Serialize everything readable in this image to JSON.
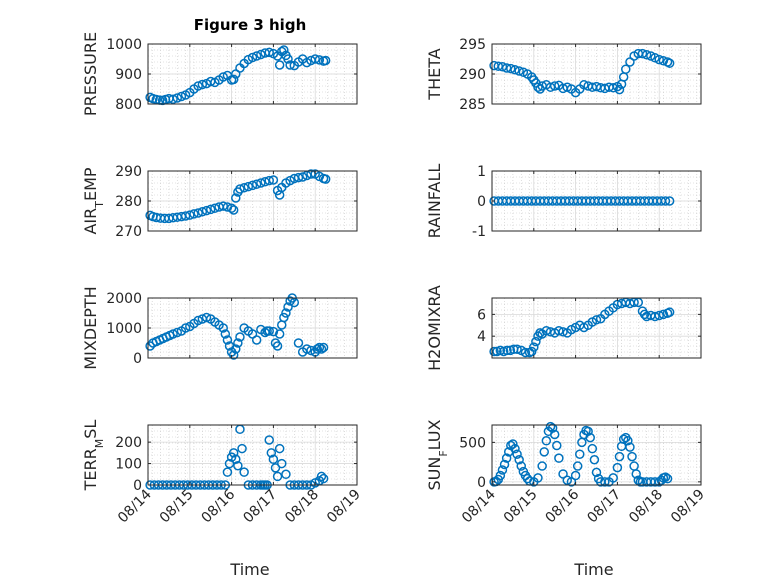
{
  "figure": {
    "title": "Figure 3 high",
    "marker_color": "#0072bd",
    "x_axis_label": "Time"
  },
  "chart_data": [
    {
      "type": "scatter",
      "ylabel": "PRESSURE",
      "title": "Figure 3 high",
      "xlim": [
        0,
        5
      ],
      "ylim": [
        800,
        1000
      ],
      "yticks": [
        800,
        900,
        1000
      ],
      "xticklabels": [
        "08/14",
        "08/15",
        "08/16",
        "08/17",
        "08/18",
        "08/19"
      ],
      "grid": true,
      "minor_grid": true,
      "series": [
        {
          "x": [
            0.05,
            0.12,
            0.2,
            0.28,
            0.35,
            0.42,
            0.5,
            0.6,
            0.7,
            0.8,
            0.9,
            1.0,
            1.1,
            1.2,
            1.3,
            1.4,
            1.5,
            1.6,
            1.7,
            1.8,
            1.9,
            2.0,
            2.05,
            2.1,
            2.2,
            2.3,
            2.4,
            2.5,
            2.6,
            2.7,
            2.8,
            2.9,
            3.0,
            3.1,
            3.15,
            3.2,
            3.25,
            3.3,
            3.35,
            3.4,
            3.5,
            3.6,
            3.7,
            3.8,
            3.9,
            4.0,
            4.1,
            4.2,
            4.25
          ],
          "y": [
            822,
            818,
            815,
            813,
            812,
            815,
            818,
            816,
            820,
            825,
            830,
            838,
            850,
            860,
            865,
            868,
            875,
            872,
            880,
            890,
            895,
            880,
            882,
            900,
            920,
            935,
            948,
            955,
            960,
            965,
            970,
            972,
            968,
            960,
            930,
            975,
            980,
            962,
            950,
            930,
            928,
            940,
            950,
            938,
            945,
            950,
            947,
            943,
            945
          ]
        }
      ]
    },
    {
      "type": "scatter",
      "ylabel": "THETA",
      "xlim": [
        0,
        5
      ],
      "ylim": [
        285,
        295
      ],
      "yticks": [
        285,
        290,
        295
      ],
      "xticklabels": [
        "08/14",
        "08/15",
        "08/16",
        "08/17",
        "08/18",
        "08/19"
      ],
      "grid": true,
      "minor_grid": true,
      "series": [
        {
          "x": [
            0.05,
            0.15,
            0.25,
            0.35,
            0.45,
            0.55,
            0.65,
            0.75,
            0.85,
            0.95,
            1.0,
            1.05,
            1.1,
            1.15,
            1.2,
            1.3,
            1.4,
            1.5,
            1.6,
            1.7,
            1.8,
            1.9,
            2.0,
            2.1,
            2.2,
            2.3,
            2.4,
            2.5,
            2.6,
            2.7,
            2.8,
            2.9,
            3.0,
            3.05,
            3.1,
            3.15,
            3.2,
            3.3,
            3.4,
            3.5,
            3.6,
            3.7,
            3.8,
            3.9,
            4.0,
            4.1,
            4.2,
            4.25
          ],
          "y": [
            291.4,
            291.3,
            291.2,
            291.0,
            290.9,
            290.7,
            290.5,
            290.3,
            290.0,
            289.5,
            289.0,
            288.5,
            287.8,
            287.5,
            288.0,
            288.2,
            287.8,
            288.0,
            288.1,
            287.6,
            287.8,
            287.5,
            286.9,
            287.5,
            288.2,
            288.0,
            287.8,
            287.9,
            287.7,
            287.6,
            287.8,
            287.7,
            287.9,
            287.4,
            288.3,
            289.5,
            290.8,
            292.0,
            293.0,
            293.4,
            293.4,
            293.2,
            293.0,
            292.7,
            292.4,
            292.2,
            292.0,
            291.8
          ]
        }
      ]
    },
    {
      "type": "scatter",
      "ylabel_main": "AIR",
      "ylabel_sub": "T",
      "ylabel_rest": "EMP",
      "xlim": [
        0,
        5
      ],
      "ylim": [
        270,
        290
      ],
      "yticks": [
        270,
        280,
        290
      ],
      "xticklabels": [
        "08/14",
        "08/15",
        "08/16",
        "08/17",
        "08/18",
        "08/19"
      ],
      "grid": true,
      "minor_grid": true,
      "series": [
        {
          "x": [
            0.05,
            0.12,
            0.2,
            0.3,
            0.4,
            0.5,
            0.6,
            0.7,
            0.8,
            0.9,
            1.0,
            1.1,
            1.2,
            1.3,
            1.4,
            1.5,
            1.6,
            1.7,
            1.8,
            1.9,
            2.0,
            2.05,
            2.1,
            2.15,
            2.2,
            2.3,
            2.4,
            2.5,
            2.6,
            2.7,
            2.8,
            2.9,
            3.0,
            3.1,
            3.15,
            3.2,
            3.3,
            3.4,
            3.5,
            3.6,
            3.7,
            3.8,
            3.9,
            4.0,
            4.1,
            4.2,
            4.25
          ],
          "y": [
            275.2,
            274.8,
            274.5,
            274.3,
            274.2,
            274.2,
            274.4,
            274.6,
            274.8,
            275.0,
            275.3,
            275.7,
            276.0,
            276.4,
            276.8,
            277.2,
            277.6,
            278.0,
            278.3,
            278.0,
            277.6,
            277.0,
            281.0,
            283.0,
            284.0,
            284.4,
            284.8,
            285.2,
            285.6,
            286.0,
            286.4,
            286.8,
            287.0,
            283.5,
            282.0,
            284.5,
            286.0,
            286.8,
            287.5,
            287.8,
            288.0,
            288.5,
            289.0,
            289.0,
            288.2,
            287.5,
            287.3
          ]
        }
      ]
    },
    {
      "type": "scatter",
      "ylabel": "RAINFALL",
      "xlim": [
        0,
        5
      ],
      "ylim": [
        -1,
        1
      ],
      "yticks": [
        -1,
        0,
        1
      ],
      "xticklabels": [
        "08/14",
        "08/15",
        "08/16",
        "08/17",
        "08/18",
        "08/19"
      ],
      "grid": true,
      "minor_grid": true,
      "series": [
        {
          "x": [
            0.05,
            0.15,
            0.25,
            0.35,
            0.45,
            0.55,
            0.65,
            0.75,
            0.85,
            0.95,
            1.05,
            1.15,
            1.25,
            1.35,
            1.45,
            1.55,
            1.65,
            1.75,
            1.85,
            1.95,
            2.05,
            2.15,
            2.25,
            2.35,
            2.45,
            2.55,
            2.65,
            2.75,
            2.85,
            2.95,
            3.05,
            3.15,
            3.25,
            3.35,
            3.45,
            3.55,
            3.65,
            3.75,
            3.85,
            3.95,
            4.05,
            4.15,
            4.25
          ],
          "y": [
            0,
            0,
            0,
            0,
            0,
            0,
            0,
            0,
            0,
            0,
            0,
            0,
            0,
            0,
            0,
            0,
            0,
            0,
            0,
            0,
            0,
            0,
            0,
            0,
            0,
            0,
            0,
            0,
            0,
            0,
            0,
            0,
            0,
            0,
            0,
            0,
            0,
            0,
            0,
            0,
            0,
            0,
            0
          ]
        }
      ]
    },
    {
      "type": "scatter",
      "ylabel": "MIXDEPTH",
      "xlim": [
        0,
        5
      ],
      "ylim": [
        0,
        2000
      ],
      "yticks": [
        0,
        1000,
        2000
      ],
      "xticklabels": [
        "08/14",
        "08/15",
        "08/16",
        "08/17",
        "08/18",
        "08/19"
      ],
      "grid": true,
      "minor_grid": true,
      "series": [
        {
          "x": [
            0.05,
            0.12,
            0.2,
            0.28,
            0.36,
            0.44,
            0.52,
            0.6,
            0.7,
            0.8,
            0.9,
            1.0,
            1.1,
            1.2,
            1.3,
            1.4,
            1.5,
            1.6,
            1.7,
            1.8,
            1.85,
            1.9,
            1.95,
            2.0,
            2.05,
            2.1,
            2.15,
            2.2,
            2.3,
            2.4,
            2.5,
            2.6,
            2.7,
            2.8,
            2.85,
            2.9,
            3.0,
            3.05,
            3.1,
            3.15,
            3.2,
            3.25,
            3.3,
            3.35,
            3.4,
            3.45,
            3.5,
            3.6,
            3.7,
            3.8,
            3.9,
            4.0,
            4.05,
            4.1,
            4.15,
            4.2
          ],
          "y": [
            400,
            500,
            550,
            600,
            650,
            700,
            750,
            800,
            850,
            900,
            1000,
            1050,
            1150,
            1250,
            1300,
            1350,
            1300,
            1200,
            1100,
            1000,
            800,
            600,
            400,
            200,
            100,
            300,
            500,
            700,
            1000,
            900,
            800,
            600,
            950,
            850,
            900,
            900,
            880,
            500,
            400,
            800,
            1100,
            1350,
            1500,
            1700,
            1900,
            2000,
            1850,
            500,
            200,
            300,
            250,
            200,
            300,
            350,
            300,
            350
          ]
        }
      ]
    },
    {
      "type": "scatter",
      "ylabel": "H2OMIXRA",
      "xlim": [
        0,
        5
      ],
      "ylim": [
        2,
        7.5
      ],
      "yticks": [
        4,
        6
      ],
      "xticklabels": [
        "08/14",
        "08/15",
        "08/16",
        "08/17",
        "08/18",
        "08/19"
      ],
      "grid": true,
      "minor_grid": true,
      "series": [
        {
          "x": [
            0.05,
            0.12,
            0.2,
            0.28,
            0.36,
            0.44,
            0.52,
            0.6,
            0.7,
            0.8,
            0.9,
            0.95,
            1.0,
            1.05,
            1.1,
            1.15,
            1.2,
            1.3,
            1.4,
            1.5,
            1.6,
            1.7,
            1.8,
            1.9,
            2.0,
            2.1,
            2.2,
            2.3,
            2.4,
            2.5,
            2.6,
            2.7,
            2.8,
            2.9,
            3.0,
            3.1,
            3.2,
            3.3,
            3.4,
            3.5,
            3.6,
            3.65,
            3.7,
            3.8,
            3.9,
            4.0,
            4.1,
            4.2,
            4.25
          ],
          "y": [
            2.6,
            2.6,
            2.7,
            2.6,
            2.7,
            2.7,
            2.8,
            2.8,
            2.7,
            2.5,
            2.5,
            2.6,
            3.0,
            3.5,
            4.0,
            4.3,
            4.2,
            4.5,
            4.4,
            4.3,
            4.5,
            4.4,
            4.3,
            4.6,
            4.8,
            5.0,
            4.8,
            5.0,
            5.3,
            5.5,
            5.6,
            6.0,
            6.3,
            6.6,
            6.9,
            7.0,
            7.1,
            7.0,
            7.1,
            7.1,
            6.3,
            6.0,
            5.8,
            5.9,
            5.8,
            5.9,
            6.0,
            6.1,
            6.2
          ]
        }
      ]
    },
    {
      "type": "scatter",
      "ylabel_main": "TERR",
      "ylabel_sub": "M",
      "ylabel_rest": "SL",
      "xlim": [
        0,
        5
      ],
      "ylim": [
        0,
        280
      ],
      "yticks": [
        0,
        100,
        200
      ],
      "xticklabels": [
        "08/14",
        "08/15",
        "08/16",
        "08/17",
        "08/18",
        "08/19"
      ],
      "grid": true,
      "minor_grid": true,
      "series": [
        {
          "x": [
            0.05,
            0.15,
            0.25,
            0.35,
            0.45,
            0.55,
            0.65,
            0.75,
            0.85,
            0.95,
            1.05,
            1.15,
            1.25,
            1.35,
            1.45,
            1.55,
            1.65,
            1.75,
            1.85,
            1.9,
            1.95,
            2.0,
            2.05,
            2.1,
            2.15,
            2.2,
            2.25,
            2.3,
            2.4,
            2.5,
            2.6,
            2.7,
            2.75,
            2.8,
            2.85,
            2.9,
            2.95,
            3.0,
            3.05,
            3.1,
            3.15,
            3.2,
            3.3,
            3.4,
            3.5,
            3.6,
            3.7,
            3.8,
            3.9,
            4.0,
            4.1,
            4.15,
            4.2
          ],
          "y": [
            0,
            0,
            0,
            0,
            0,
            0,
            0,
            0,
            0,
            0,
            0,
            0,
            0,
            0,
            0,
            0,
            0,
            0,
            0,
            60,
            100,
            130,
            150,
            120,
            90,
            260,
            170,
            60,
            0,
            0,
            0,
            0,
            0,
            0,
            0,
            210,
            150,
            120,
            80,
            40,
            170,
            100,
            50,
            0,
            0,
            0,
            0,
            0,
            0,
            10,
            20,
            40,
            30
          ]
        }
      ]
    },
    {
      "type": "scatter",
      "ylabel_main": "SUN",
      "ylabel_sub": "F",
      "ylabel_rest": "LUX",
      "xlim": [
        0,
        5
      ],
      "ylim": [
        -40,
        720
      ],
      "yticks": [
        0,
        500
      ],
      "xticklabels": [
        "08/14",
        "08/15",
        "08/16",
        "08/17",
        "08/18",
        "08/19"
      ],
      "grid": true,
      "minor_grid": true,
      "series": [
        {
          "x": [
            0.05,
            0.1,
            0.15,
            0.2,
            0.25,
            0.3,
            0.35,
            0.4,
            0.45,
            0.5,
            0.55,
            0.6,
            0.65,
            0.7,
            0.75,
            0.8,
            0.85,
            0.9,
            1.0,
            1.1,
            1.2,
            1.25,
            1.3,
            1.35,
            1.4,
            1.45,
            1.5,
            1.55,
            1.6,
            1.7,
            1.8,
            1.9,
            2.0,
            2.05,
            2.1,
            2.15,
            2.2,
            2.25,
            2.3,
            2.35,
            2.4,
            2.45,
            2.5,
            2.55,
            2.6,
            2.7,
            2.8,
            2.9,
            3.0,
            3.05,
            3.1,
            3.15,
            3.2,
            3.25,
            3.3,
            3.35,
            3.4,
            3.45,
            3.5,
            3.55,
            3.6,
            3.7,
            3.8,
            3.9,
            4.0,
            4.05,
            4.1,
            4.15,
            4.2
          ],
          "y": [
            0,
            5,
            30,
            80,
            150,
            220,
            300,
            380,
            460,
            480,
            420,
            350,
            280,
            200,
            130,
            80,
            40,
            10,
            0,
            50,
            200,
            380,
            520,
            640,
            700,
            680,
            600,
            460,
            300,
            100,
            20,
            0,
            80,
            200,
            350,
            500,
            600,
            650,
            640,
            560,
            420,
            280,
            120,
            40,
            0,
            0,
            0,
            50,
            180,
            320,
            450,
            540,
            560,
            520,
            440,
            320,
            200,
            100,
            20,
            0,
            0,
            0,
            0,
            0,
            0,
            20,
            50,
            60,
            40
          ]
        }
      ]
    }
  ]
}
